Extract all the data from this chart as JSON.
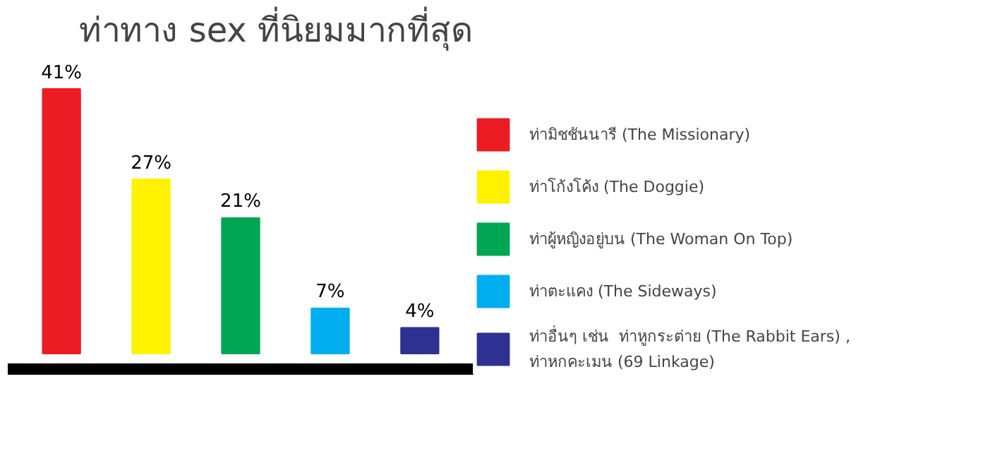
{
  "chart_data": {
    "type": "bar",
    "title": "ท่าทาง sex ที่นิยมมากที่สุด",
    "categories": [
      null,
      null,
      null,
      null,
      null
    ],
    "series": [
      {
        "name": "ท่ามิชชันนารี (The Missionary)",
        "color": "#ed1c24",
        "values": [
          41,
          null,
          null,
          null,
          null
        ],
        "value_labels": [
          "41%",
          null,
          null,
          null,
          null
        ]
      },
      {
        "name": "ท่าโก้งโค้ง (The Doggie)",
        "color": "#fff200",
        "values": [
          null,
          27,
          null,
          null,
          null
        ],
        "value_labels": [
          null,
          "27%",
          null,
          null,
          null
        ]
      },
      {
        "name": "ท่าผู้หญิงอยู่บน (The Woman On Top)",
        "color": "#00a651",
        "values": [
          null,
          null,
          21,
          null,
          null
        ],
        "value_labels": [
          null,
          null,
          "21%",
          null,
          null
        ]
      },
      {
        "name": "ท่าตะแคง (The Sideways)",
        "color": "#00aeef",
        "values": [
          null,
          null,
          null,
          7,
          null
        ],
        "value_labels": [
          null,
          null,
          null,
          "7%",
          null
        ]
      },
      {
        "name": "ท่าอื่นๆ เช่น  ท่าหูกระต่าย (The Rabbit Ears) ,\nท่าหกคะเมน (69 Linkage)",
        "color": "#2e3192",
        "values": [
          null,
          null,
          null,
          null,
          4
        ],
        "value_labels": [
          null,
          null,
          null,
          null,
          "4%"
        ]
      }
    ],
    "stacked": true,
    "legend": "right",
    "tick_labels": false
  }
}
